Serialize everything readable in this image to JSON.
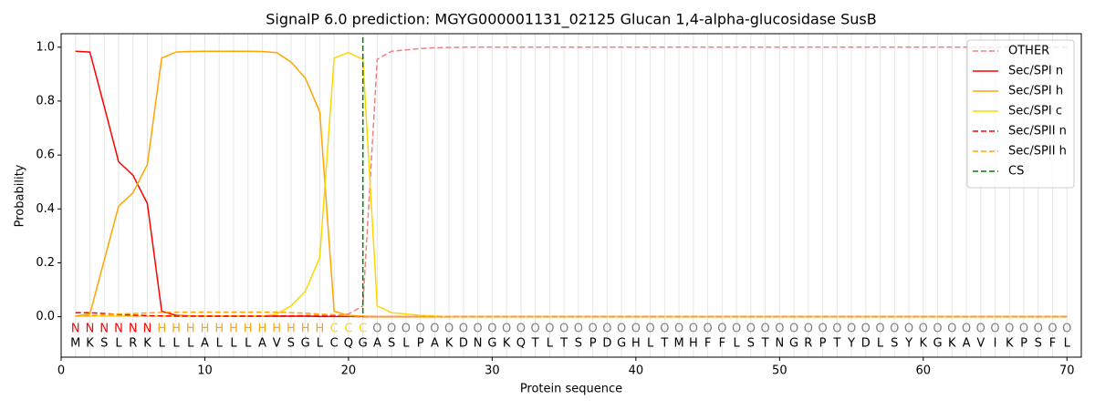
{
  "chart_data": {
    "type": "line",
    "title": "SignalP 6.0 prediction: MGYG000001131_02125 Glucan 1,4-alpha-glucosidase SusB",
    "x_label": "Protein sequence",
    "y_label": "Probability",
    "xlim": [
      0,
      71
    ],
    "ylim": [
      -0.15,
      1.05
    ],
    "xticks": [
      0,
      10,
      20,
      30,
      40,
      50,
      60,
      70
    ],
    "yticks": [
      {
        "value": 0,
        "label": "0.0"
      },
      {
        "value": 0.2,
        "label": "0.2"
      },
      {
        "value": 0.4,
        "label": "0.4"
      },
      {
        "value": 0.6,
        "label": "0.6"
      },
      {
        "value": 0.8,
        "label": "0.8"
      },
      {
        "value": 1,
        "label": "1.0"
      }
    ],
    "legend": "upper right",
    "x": [
      1,
      2,
      3,
      4,
      5,
      6,
      7,
      8,
      9,
      10,
      11,
      12,
      13,
      14,
      15,
      16,
      17,
      18,
      19,
      20,
      21,
      22,
      23,
      24,
      25,
      26,
      27,
      28,
      29,
      30,
      31,
      32,
      33,
      34,
      35,
      36,
      37,
      38,
      39,
      40,
      41,
      42,
      43,
      44,
      45,
      46,
      47,
      48,
      49,
      50,
      51,
      52,
      53,
      54,
      55,
      56,
      57,
      58,
      59,
      60,
      61,
      62,
      63,
      64,
      65,
      66,
      67,
      68,
      69,
      70
    ],
    "sequence": [
      "M",
      "K",
      "S",
      "L",
      "R",
      "K",
      "L",
      "L",
      "L",
      "A",
      "L",
      "L",
      "L",
      "A",
      "V",
      "S",
      "G",
      "L",
      "C",
      "Q",
      "G",
      "A",
      "S",
      "L",
      "P",
      "A",
      "K",
      "D",
      "N",
      "G",
      "K",
      "Q",
      "T",
      "L",
      "T",
      "S",
      "P",
      "D",
      "G",
      "H",
      "L",
      "T",
      "M",
      "H",
      "F",
      "F",
      "L",
      "S",
      "T",
      "N",
      "G",
      "R",
      "P",
      "T",
      "Y",
      "D",
      "L",
      "S",
      "Y",
      "K",
      "G",
      "K",
      "A",
      "V",
      "I",
      "K",
      "P",
      "S",
      "F",
      "L"
    ],
    "regions": [
      "N",
      "N",
      "N",
      "N",
      "N",
      "N",
      "H",
      "H",
      "H",
      "H",
      "H",
      "H",
      "H",
      "H",
      "H",
      "H",
      "H",
      "H",
      "C",
      "C",
      "C",
      "O",
      "O",
      "O",
      "O",
      "O",
      "O",
      "O",
      "O",
      "O",
      "O",
      "O",
      "O",
      "O",
      "O",
      "O",
      "O",
      "O",
      "O",
      "O",
      "O",
      "O",
      "O",
      "O",
      "O",
      "O",
      "O",
      "O",
      "O",
      "O",
      "O",
      "O",
      "O",
      "O",
      "O",
      "O",
      "O",
      "O",
      "O",
      "O",
      "O",
      "O",
      "O",
      "O",
      "O",
      "O",
      "O",
      "O",
      "O",
      "O"
    ],
    "region_colors": {
      "N": "#ff0000",
      "H": "#ffa500",
      "C": "#ffd700",
      "O": "#808080"
    },
    "series": [
      {
        "name": "OTHER",
        "color": "#f08080",
        "style": "dashed",
        "values": [
          0.003,
          0.003,
          0.003,
          0.003,
          0.003,
          0.003,
          0.003,
          0.003,
          0.003,
          0.003,
          0.003,
          0.003,
          0.003,
          0.003,
          0.003,
          0.004,
          0.005,
          0.005,
          0.005,
          0.01,
          0.04,
          0.955,
          0.985,
          0.99,
          0.995,
          0.998,
          0.999,
          1,
          1,
          1,
          1,
          1,
          1,
          1,
          1,
          1,
          1,
          1,
          1,
          1,
          1,
          1,
          1,
          1,
          1,
          1,
          1,
          1,
          1,
          1,
          1,
          1,
          1,
          1,
          1,
          1,
          1,
          1,
          1,
          1,
          1,
          1,
          1,
          1,
          1,
          1,
          1,
          1,
          1,
          1
        ]
      },
      {
        "name": "Sec/SPI n",
        "color": "#ff0000",
        "style": "solid",
        "values": [
          0.985,
          0.982,
          0.78,
          0.575,
          0.525,
          0.42,
          0.02,
          0.005,
          0.003,
          0.002,
          0.002,
          0.002,
          0.002,
          0.002,
          0.002,
          0.002,
          0.002,
          0.001,
          0.001,
          0.001,
          0.001,
          0,
          0,
          0,
          0,
          0,
          0,
          0,
          0,
          0,
          0,
          0,
          0,
          0,
          0,
          0,
          0,
          0,
          0,
          0,
          0,
          0,
          0,
          0,
          0,
          0,
          0,
          0,
          0,
          0,
          0,
          0,
          0,
          0,
          0,
          0,
          0,
          0,
          0,
          0,
          0,
          0,
          0,
          0,
          0,
          0,
          0,
          0,
          0,
          0
        ]
      },
      {
        "name": "Sec/SPI h",
        "color": "#ffa500",
        "style": "solid",
        "values": [
          0.003,
          0.01,
          0.21,
          0.41,
          0.46,
          0.565,
          0.96,
          0.982,
          0.984,
          0.985,
          0.985,
          0.985,
          0.985,
          0.984,
          0.98,
          0.945,
          0.885,
          0.76,
          0.02,
          0.005,
          0.002,
          0,
          0,
          0,
          0,
          0,
          0,
          0,
          0,
          0,
          0,
          0,
          0,
          0,
          0,
          0,
          0,
          0,
          0,
          0,
          0,
          0,
          0,
          0,
          0,
          0,
          0,
          0,
          0,
          0,
          0,
          0,
          0,
          0,
          0,
          0,
          0,
          0,
          0,
          0,
          0,
          0,
          0,
          0,
          0,
          0,
          0,
          0,
          0,
          0
        ]
      },
      {
        "name": "Sec/SPI c",
        "color": "#ffd700",
        "style": "solid",
        "values": [
          0.002,
          0.002,
          0.002,
          0.002,
          0.002,
          0.002,
          0.002,
          0.002,
          0.002,
          0.002,
          0.002,
          0.002,
          0.002,
          0.002,
          0.01,
          0.04,
          0.095,
          0.22,
          0.96,
          0.98,
          0.955,
          0.04,
          0.015,
          0.01,
          0.005,
          0.002,
          0,
          0,
          0,
          0,
          0,
          0,
          0,
          0,
          0,
          0,
          0,
          0,
          0,
          0,
          0,
          0,
          0,
          0,
          0,
          0,
          0,
          0,
          0,
          0,
          0,
          0,
          0,
          0,
          0,
          0,
          0,
          0,
          0,
          0,
          0,
          0,
          0,
          0,
          0,
          0,
          0,
          0,
          0,
          0
        ]
      },
      {
        "name": "Sec/SPII n",
        "color": "#ff0000",
        "style": "dashed",
        "values": [
          0.015,
          0.015,
          0.012,
          0.008,
          0.006,
          0.004,
          0.003,
          0.002,
          0.002,
          0.002,
          0.002,
          0.002,
          0.002,
          0.002,
          0.002,
          0.002,
          0.002,
          0.002,
          0.002,
          0.002,
          0,
          0,
          0,
          0,
          0,
          0,
          0,
          0,
          0,
          0,
          0,
          0,
          0,
          0,
          0,
          0,
          0,
          0,
          0,
          0,
          0,
          0,
          0,
          0,
          0,
          0,
          0,
          0,
          0,
          0,
          0,
          0,
          0,
          0,
          0,
          0,
          0,
          0,
          0,
          0,
          0,
          0,
          0,
          0,
          0,
          0,
          0,
          0,
          0,
          0
        ]
      },
      {
        "name": "Sec/SPII h",
        "color": "#ffa500",
        "style": "dashed",
        "values": [
          0.003,
          0.005,
          0.008,
          0.01,
          0.012,
          0.014,
          0.016,
          0.017,
          0.017,
          0.017,
          0.017,
          0.017,
          0.017,
          0.017,
          0.017,
          0.015,
          0.013,
          0.01,
          0.007,
          0.004,
          0.001,
          0,
          0,
          0,
          0,
          0,
          0,
          0,
          0,
          0,
          0,
          0,
          0,
          0,
          0,
          0,
          0,
          0,
          0,
          0,
          0,
          0,
          0,
          0,
          0,
          0,
          0,
          0,
          0,
          0,
          0,
          0,
          0,
          0,
          0,
          0,
          0,
          0,
          0,
          0,
          0,
          0,
          0,
          0,
          0,
          0,
          0,
          0,
          0,
          0
        ]
      }
    ],
    "cs": {
      "name": "CS",
      "color": "#008000",
      "style": "dashed",
      "x": 21
    }
  }
}
